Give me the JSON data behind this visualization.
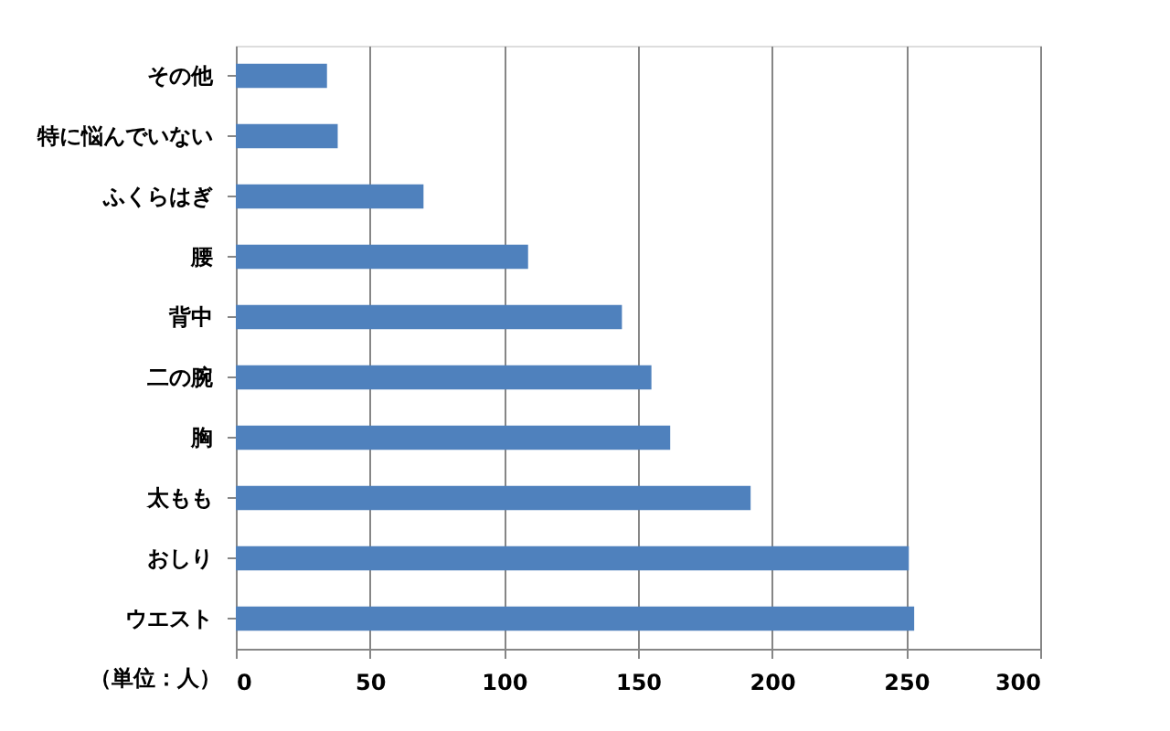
{
  "chart_data": {
    "type": "bar",
    "orientation": "horizontal",
    "categories": [
      "その他",
      "特に悩んでいない",
      "ふくらはぎ",
      "腰",
      "背中",
      "二の腕",
      "胸",
      "太もも",
      "おしり",
      "ウエスト"
    ],
    "values": [
      34,
      38,
      70,
      109,
      144,
      155,
      162,
      192,
      251,
      253
    ],
    "color": "#4f81bd",
    "xlim": [
      0,
      300
    ],
    "xticks": [
      0,
      50,
      100,
      150,
      200,
      250,
      300
    ],
    "grid": "x",
    "annotations": [
      "（単位：人）"
    ]
  }
}
